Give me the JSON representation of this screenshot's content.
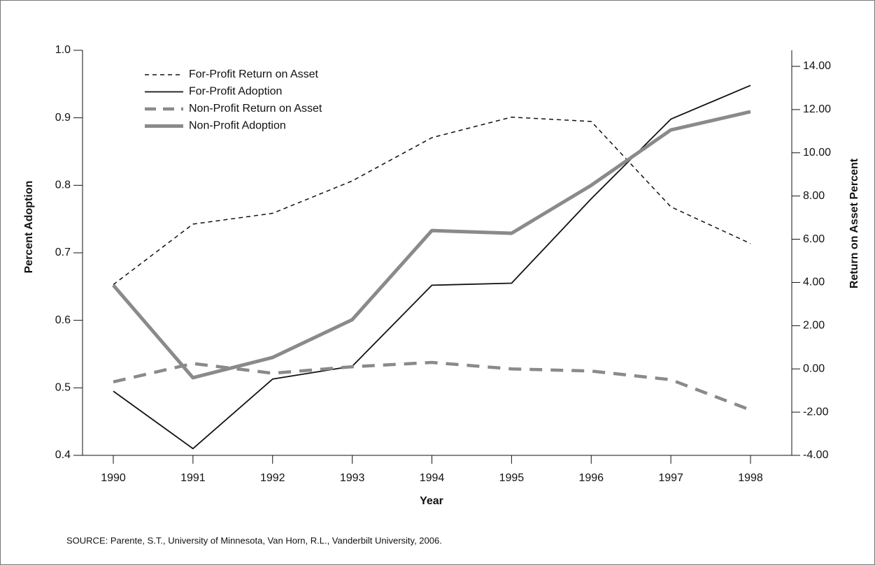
{
  "chart_data": {
    "type": "line",
    "x": [
      1990,
      1991,
      1992,
      1993,
      1994,
      1995,
      1996,
      1997,
      1998
    ],
    "xlabel": "Year",
    "ylabel": "Percent Adoption",
    "y2label": "Return on Asset Percent",
    "ylim": [
      0.4,
      1.0
    ],
    "yticks": [
      0.4,
      0.5,
      0.6,
      0.7,
      0.8,
      0.9,
      {
        "value": 1.0,
        "label": "1.0"
      }
    ],
    "y2lim": [
      -4,
      14
    ],
    "y2ticks": [
      {
        "value": -4,
        "label": "-4.00"
      },
      {
        "value": -2,
        "label": "-2.00"
      },
      {
        "value": 0,
        "label": "0.00"
      },
      {
        "value": 2,
        "label": "2.00"
      },
      {
        "value": 4,
        "label": "4.00"
      },
      {
        "value": 6,
        "label": "6.00"
      },
      {
        "value": 8,
        "label": "8.00"
      },
      {
        "value": 10,
        "label": "10.00"
      },
      {
        "value": 12,
        "label": "12.00"
      },
      {
        "value": 14,
        "label": "14.00"
      }
    ],
    "series": [
      {
        "name": "For-Profit Return on Asset",
        "color": "#111111",
        "linestyle": "dashed",
        "linewidth": 1.5,
        "axis": "y2",
        "values": [
          3.9,
          6.7,
          7.2,
          8.7,
          10.7,
          11.65,
          11.45,
          7.5,
          5.8
        ]
      },
      {
        "name": "For-Profit Adoption",
        "color": "#111111",
        "linestyle": "solid",
        "linewidth": 1.8,
        "values": [
          0.495,
          0.41,
          0.513,
          0.532,
          0.652,
          0.655,
          0.78,
          0.898,
          0.948
        ]
      },
      {
        "name": "Non-Profit Return on Asset",
        "color": "#8a8a8a",
        "linestyle": "dashed",
        "linewidth": 4.5,
        "axis": "y2",
        "values": [
          -0.6,
          0.25,
          -0.2,
          0.1,
          0.3,
          0.0,
          -0.1,
          -0.5,
          -1.9
        ]
      },
      {
        "name": "Non-Profit Adoption",
        "color": "#8a8a8a",
        "linestyle": "solid",
        "linewidth": 5,
        "values": [
          0.652,
          0.515,
          0.545,
          0.601,
          0.733,
          0.729,
          0.8,
          0.882,
          0.909
        ]
      }
    ],
    "source": "SOURCE: Parente, S.T., University of Minnesota, Van Horn, R.L., Vanderbilt University, 2006."
  }
}
